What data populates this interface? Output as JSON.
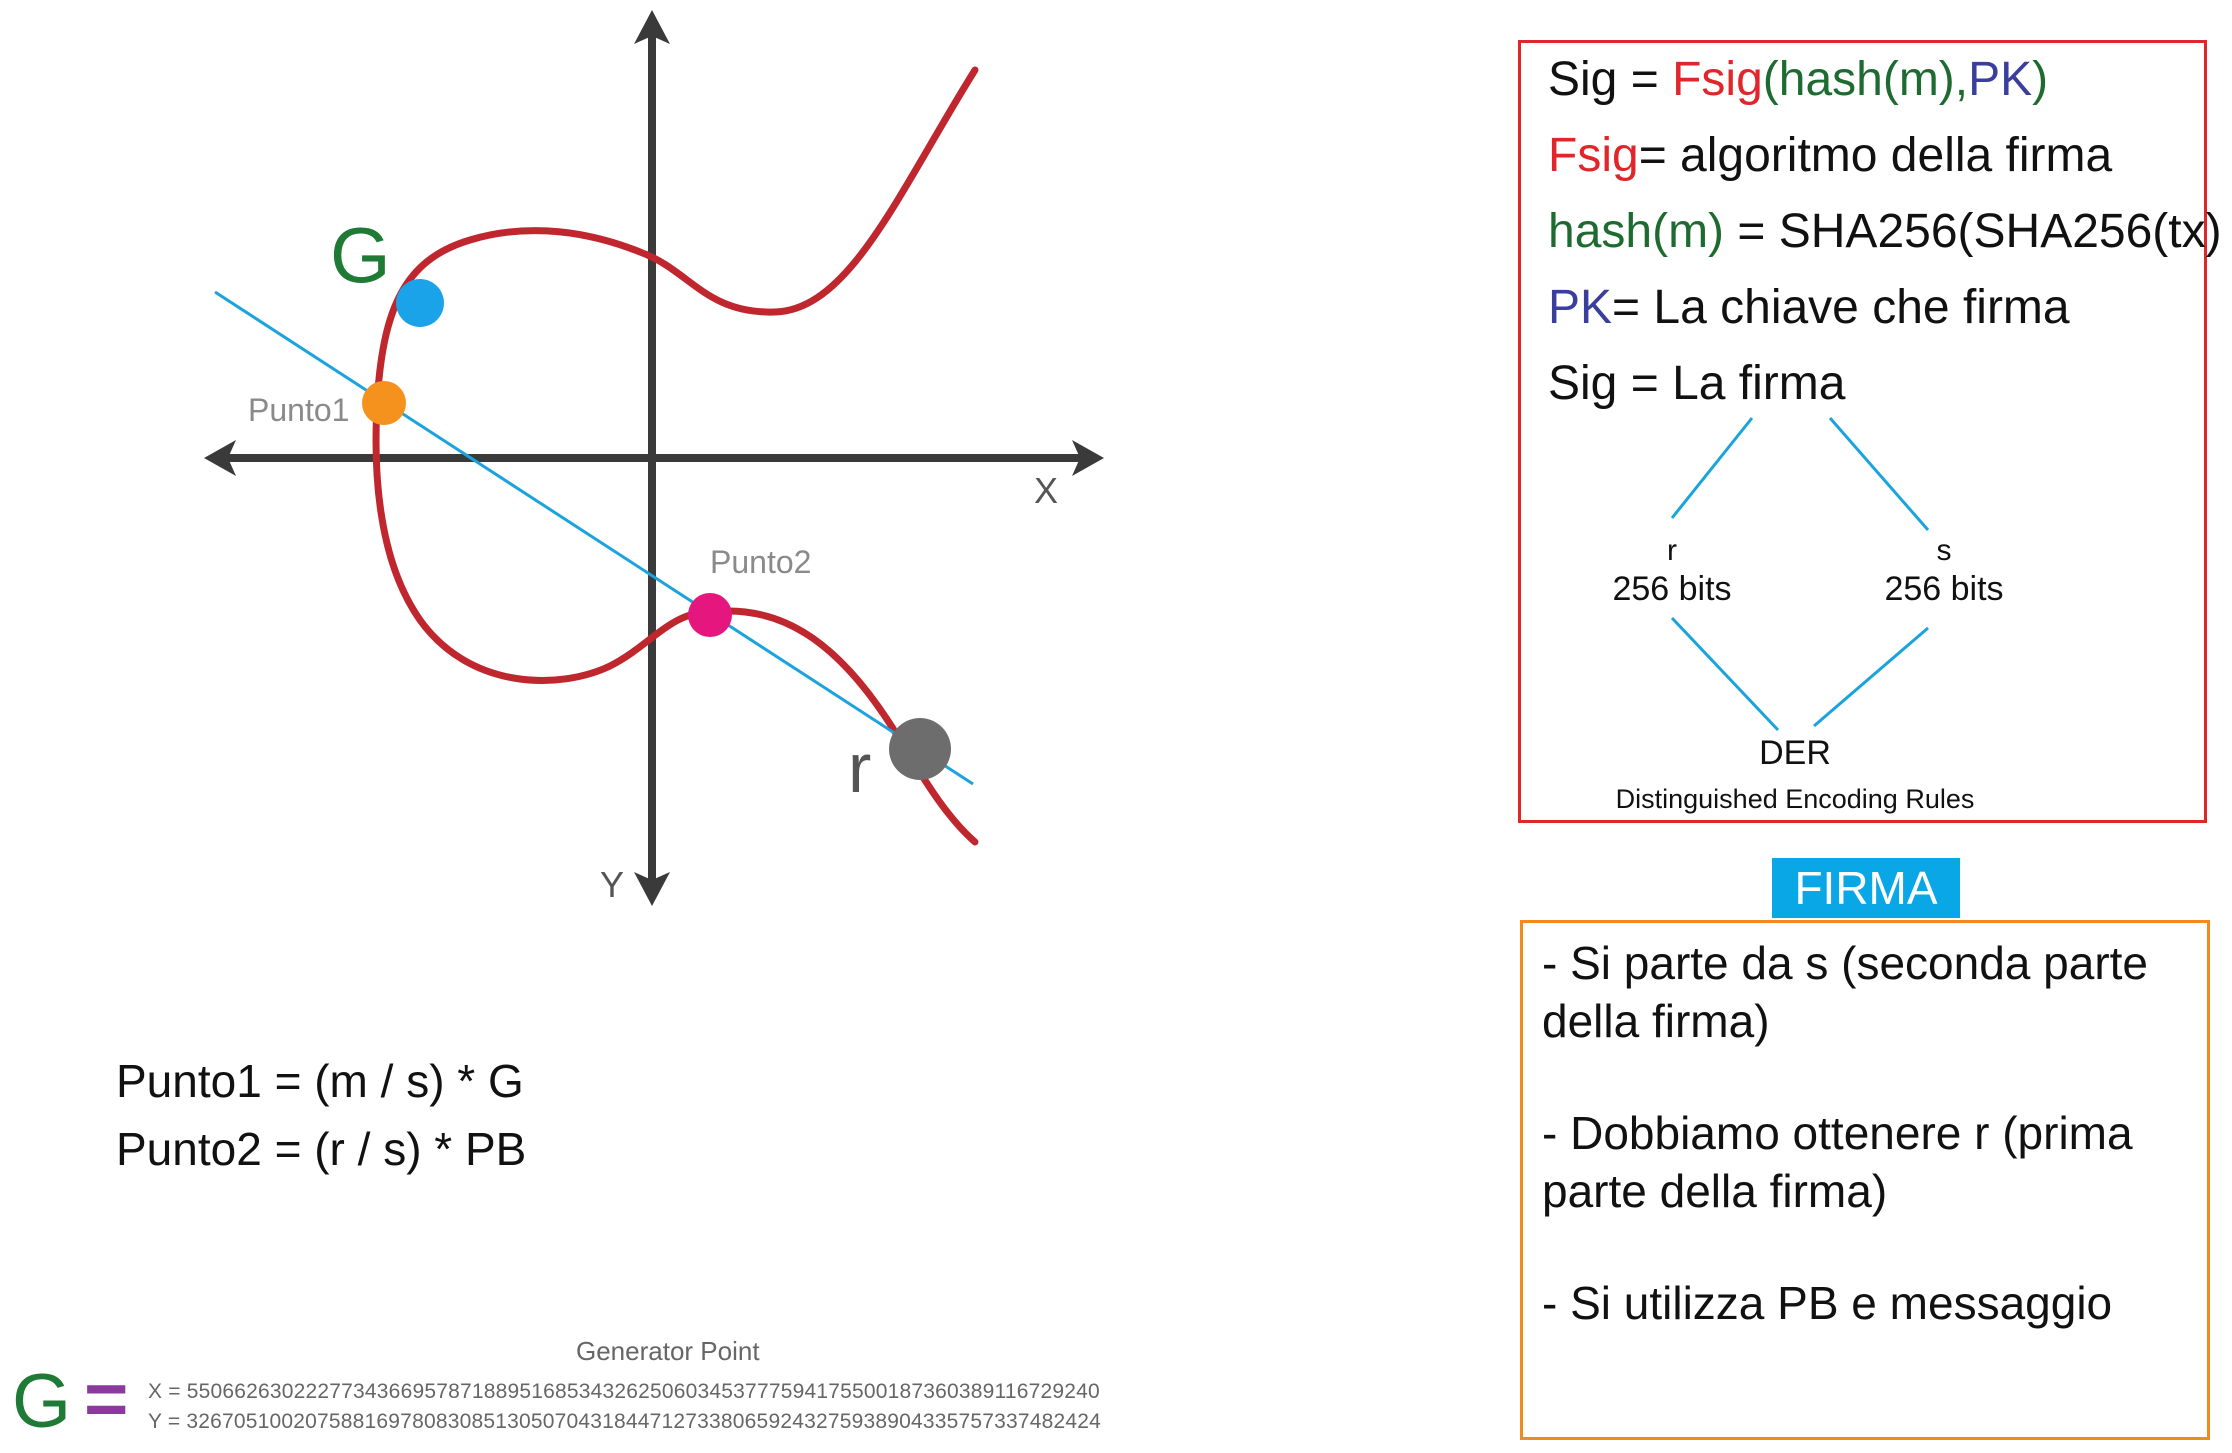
{
  "graph": {
    "x_axis_label": "X",
    "y_axis_label": "Y",
    "point_g_label": "G",
    "point1_label": "Punto1",
    "point2_label": "Punto2",
    "point_r_label": "r",
    "colors": {
      "curve": "#c0262e",
      "line": "#1aa3dc",
      "axis": "#3a3a3a",
      "g_point": "#1aa3e8",
      "point1": "#f5921e",
      "point2": "#e6167f",
      "r_point": "#6d6d6d",
      "g_label": "#1e7a34"
    }
  },
  "formulas": {
    "line1": "Punto1 = (m / s) * G",
    "line2": "Punto2 = (r / s) * PB"
  },
  "generator": {
    "title": "Generator Point",
    "symbol": "G",
    "equals": "=",
    "x_line": "X = 55066263022277343669578718895168534326250603453777594175500187360389116729240",
    "y_line": "Y = 32670510020758816978083085130507043184471273380659243275938904335757337482424"
  },
  "signature_box": {
    "line1": {
      "a": "Sig = ",
      "b": "Fsig",
      "c": "(hash(m),",
      "d": "PK",
      "e": ")"
    },
    "line2": {
      "a": "Fsig",
      "b": "= algoritmo della firma"
    },
    "line3": {
      "a": "hash(m)",
      "b": " = SHA256(SHA256(tx)"
    },
    "line4": {
      "a": "PK",
      "b": "= La chiave che firma"
    },
    "line5": "Sig = La firma",
    "r_label": "r",
    "r_bits": "256 bits",
    "s_label": "s",
    "s_bits": "256 bits",
    "der_label": "DER",
    "der_desc": "Distinguished Encoding Rules"
  },
  "firma_tag": "FIRMA",
  "notes": [
    "- Si parte da s (seconda parte della firma)",
    "- Dobbiamo ottenere r (prima parte della firma)",
    "- Si utilizza PB e messaggio"
  ]
}
